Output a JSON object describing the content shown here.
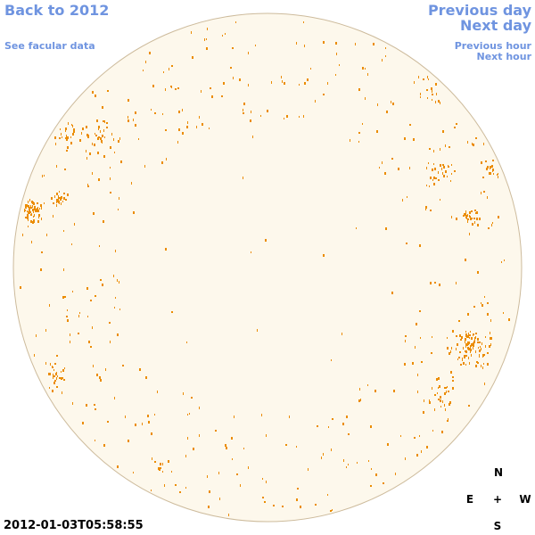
{
  "header": {
    "back_link": "Back to 2012",
    "facular_link": "See facular data",
    "previous_day": "Previous day",
    "next_day": "Next day",
    "previous_hour": "Previous hour",
    "next_hour": "Next hour"
  },
  "timestamp": "2012-01-03T05:58:55",
  "compass": {
    "north": "N",
    "east": "E",
    "center": "+",
    "west": "W",
    "south": "S"
  }
}
